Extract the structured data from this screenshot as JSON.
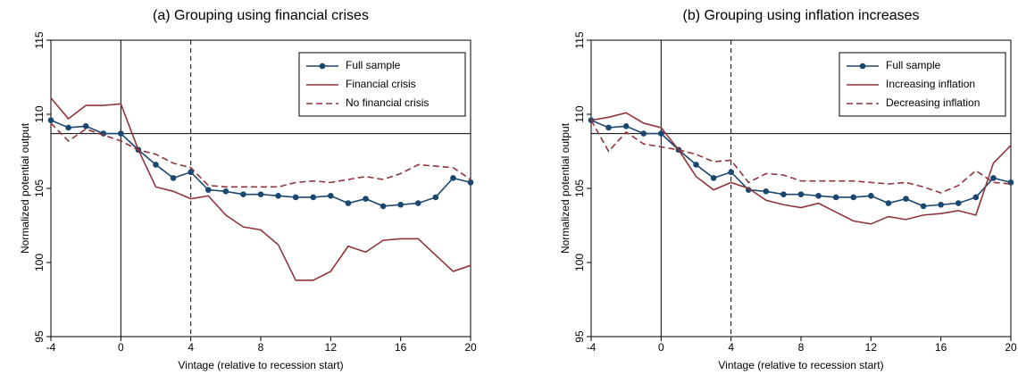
{
  "chart_data": [
    {
      "type": "line",
      "title": "(a) Grouping using financial crises",
      "xlabel": "Vintage (relative to recession start)",
      "ylabel": "Normalized potential output",
      "x": [
        -4,
        -3,
        -2,
        -1,
        0,
        1,
        2,
        3,
        4,
        5,
        6,
        7,
        8,
        9,
        10,
        11,
        12,
        13,
        14,
        15,
        16,
        17,
        18,
        19,
        20
      ],
      "xlim": [
        -4,
        20
      ],
      "xticks": [
        -4,
        0,
        4,
        8,
        12,
        16,
        20
      ],
      "ylim": [
        95,
        115
      ],
      "yticks": [
        95,
        100,
        105,
        110,
        115
      ],
      "reference_lines": {
        "y": 108.7,
        "x_solid": 0,
        "x_dashed": 4
      },
      "legend": "top right",
      "series": [
        {
          "name": "Full sample",
          "color": "#1a476f",
          "style": "solid",
          "markers": true,
          "values": [
            109.6,
            109.1,
            109.2,
            108.7,
            108.7,
            107.6,
            106.6,
            105.7,
            106.1,
            104.9,
            104.8,
            104.6,
            104.6,
            104.5,
            104.4,
            104.4,
            104.5,
            104.0,
            104.3,
            103.8,
            103.9,
            104.0,
            104.4,
            105.7,
            105.4
          ]
        },
        {
          "name": "Financial crisis",
          "color": "#90353b",
          "style": "solid",
          "markers": false,
          "values": [
            111.1,
            109.7,
            110.6,
            110.6,
            110.7,
            107.6,
            105.1,
            104.8,
            104.3,
            104.5,
            103.2,
            102.4,
            102.2,
            101.2,
            98.8,
            98.8,
            99.4,
            101.1,
            100.7,
            101.5,
            101.6,
            101.6,
            100.5,
            99.4,
            99.8
          ]
        },
        {
          "name": "No financial crisis",
          "color": "#90353b",
          "style": "dashed",
          "markers": false,
          "values": [
            109.4,
            108.2,
            109.0,
            108.6,
            108.2,
            107.6,
            107.3,
            106.7,
            106.4,
            105.2,
            105.1,
            105.1,
            105.1,
            105.1,
            105.4,
            105.5,
            105.4,
            105.6,
            105.8,
            105.6,
            106.0,
            106.6,
            106.5,
            106.4,
            105.6
          ]
        }
      ]
    },
    {
      "type": "line",
      "title": "(b) Grouping using inflation increases",
      "xlabel": "Vintage (relative to recession start)",
      "ylabel": "Normalized potential output",
      "x": [
        -4,
        -3,
        -2,
        -1,
        0,
        1,
        2,
        3,
        4,
        5,
        6,
        7,
        8,
        9,
        10,
        11,
        12,
        13,
        14,
        15,
        16,
        17,
        18,
        19,
        20
      ],
      "xlim": [
        -4,
        20
      ],
      "xticks": [
        -4,
        0,
        4,
        8,
        12,
        16,
        20
      ],
      "ylim": [
        95,
        115
      ],
      "yticks": [
        95,
        100,
        105,
        110,
        115
      ],
      "reference_lines": {
        "y": 108.7,
        "x_solid": 0,
        "x_dashed": 4
      },
      "legend": "top right",
      "series": [
        {
          "name": "Full sample",
          "color": "#1a476f",
          "style": "solid",
          "markers": true,
          "values": [
            109.6,
            109.1,
            109.2,
            108.7,
            108.7,
            107.6,
            106.6,
            105.7,
            106.1,
            104.9,
            104.8,
            104.6,
            104.6,
            104.5,
            104.4,
            104.4,
            104.5,
            104.0,
            104.3,
            103.8,
            103.9,
            104.0,
            104.4,
            105.7,
            105.4
          ]
        },
        {
          "name": "Increasing inflation",
          "color": "#90353b",
          "style": "solid",
          "markers": false,
          "values": [
            109.6,
            109.8,
            110.1,
            109.4,
            109.1,
            107.6,
            105.8,
            104.9,
            105.4,
            105.0,
            104.2,
            103.9,
            103.7,
            104.0,
            103.4,
            102.8,
            102.6,
            103.1,
            102.9,
            103.2,
            103.3,
            103.5,
            103.2,
            106.7,
            107.9
          ]
        },
        {
          "name": "Decreasing inflation",
          "color": "#90353b",
          "style": "dashed",
          "markers": false,
          "values": [
            109.6,
            107.5,
            108.8,
            108.0,
            107.8,
            107.6,
            107.3,
            106.8,
            106.9,
            105.4,
            106.0,
            105.9,
            105.5,
            105.5,
            105.5,
            105.5,
            105.4,
            105.3,
            105.4,
            105.1,
            104.7,
            105.2,
            106.2,
            105.4,
            105.3
          ]
        }
      ]
    }
  ]
}
